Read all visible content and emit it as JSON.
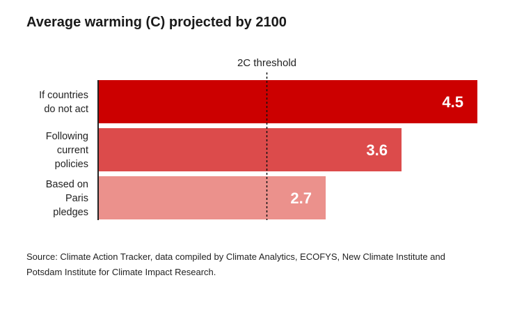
{
  "chart_data": {
    "type": "bar",
    "orientation": "horizontal",
    "title": "Average warming (C) projected by 2100",
    "categories": [
      [
        "If countries",
        "do not act"
      ],
      [
        "Following",
        "current",
        "policies"
      ],
      [
        "Based on",
        "Paris",
        "pledges"
      ]
    ],
    "values": [
      4.5,
      3.6,
      2.7
    ],
    "value_labels": [
      "4.5",
      "3.6",
      "2.7"
    ],
    "colors": [
      "#cc0000",
      "#dc4b4b",
      "#eb918c"
    ],
    "threshold": {
      "value": 2,
      "label": "2C threshold"
    },
    "xlim": [
      0,
      4.5
    ],
    "grid": false
  },
  "source": "Source: Climate Action Tracker, data compiled by Climate Analytics, ECOFYS, New Climate Institute and Potsdam Institute for Climate Impact Research."
}
